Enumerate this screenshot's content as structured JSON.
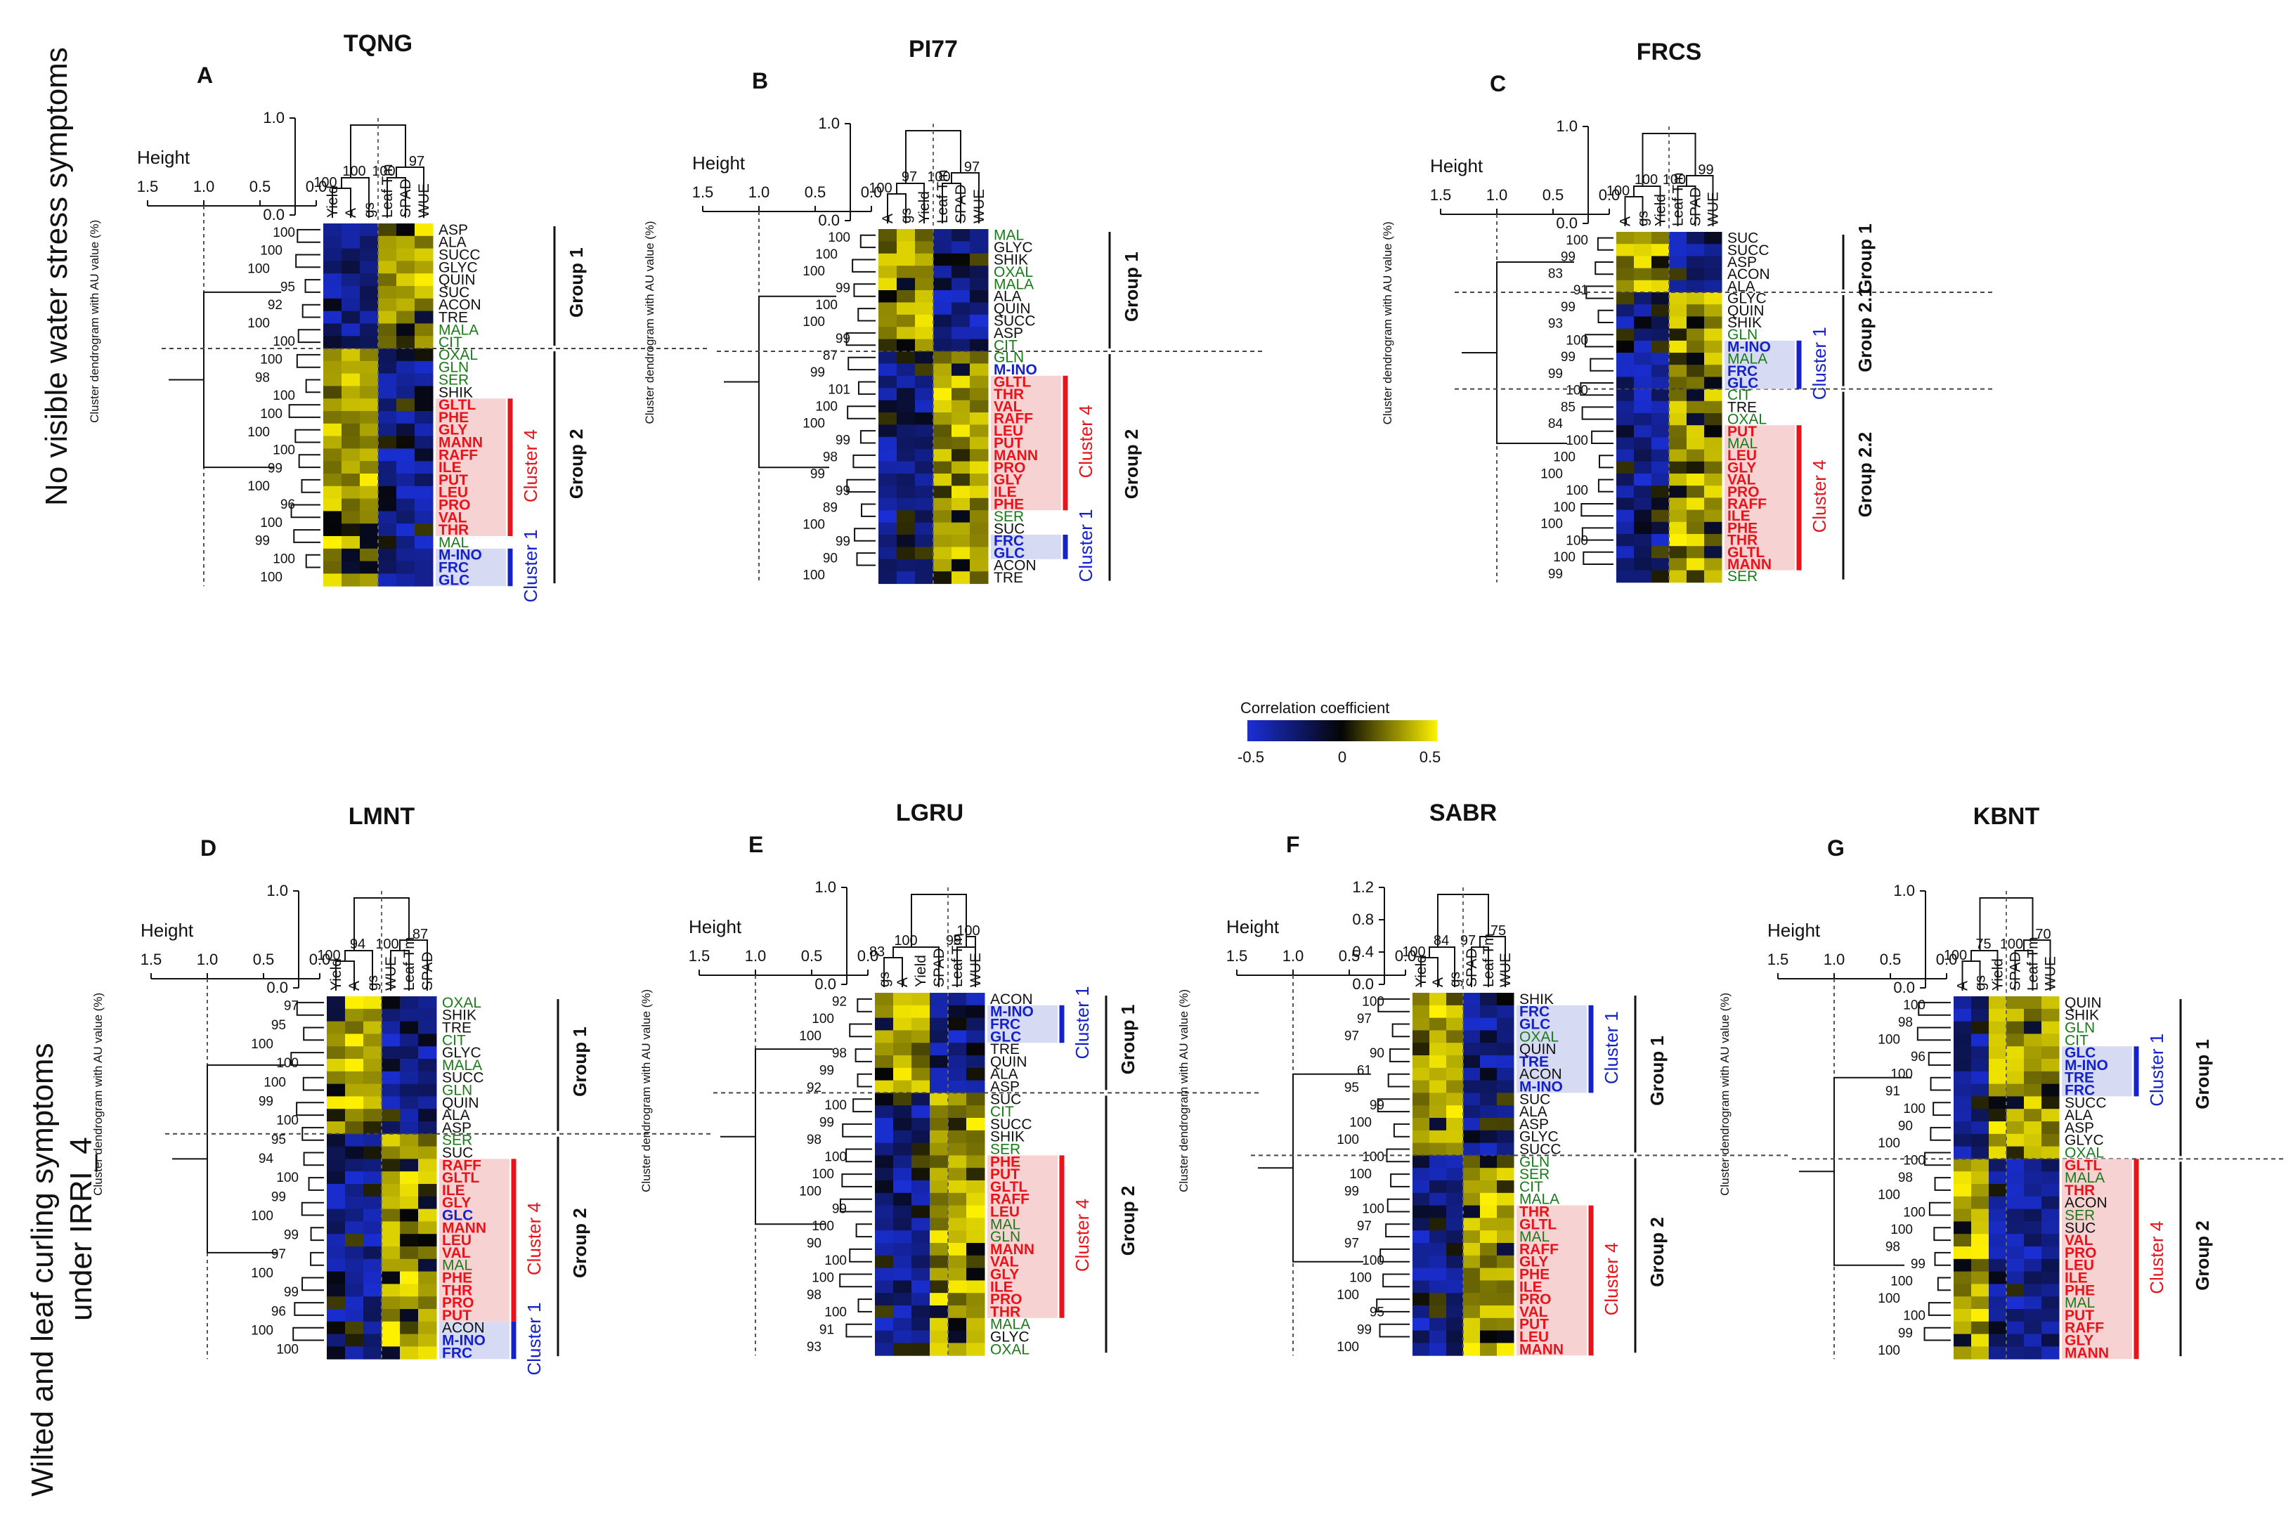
{
  "colors": {
    "neg": "#1a2fd6",
    "mid": "#050505",
    "pos": "#fff200",
    "red": "#e8141b",
    "blue": "#1522c8",
    "green": "#1a7a1a",
    "black": "#111111",
    "redbox": "#f7d2d2",
    "bluebox": "#d6daf2"
  },
  "row_labels": {
    "top": "No visible  water stress symptoms",
    "bottom_l1": "Wilted and leaf curling symptoms",
    "bottom_l2": "under IRRI_4"
  },
  "legend": {
    "title": "Correlation coefficient",
    "ticks": [
      "-0.5",
      "0",
      "0.5"
    ]
  },
  "common": {
    "height_label": "Height",
    "height_ticks": [
      "1.5",
      "1.0",
      "0.5",
      "0.0"
    ],
    "y_axis_label": "Cluster dendrogram with AU value (%)"
  },
  "panels": [
    {
      "letter": "A",
      "title": "TQNG",
      "cols": [
        "Yield",
        "A",
        "gs",
        "Leaf Tm",
        "SPAD",
        "WUE"
      ],
      "top_ticks": [
        "1.0",
        "0.0"
      ],
      "top_au": [
        "100",
        "100",
        "100",
        "97"
      ],
      "rows": [
        "ASP",
        "ALA",
        "SUCC",
        "GLYC",
        "QUIN",
        "SUC",
        "ACON",
        "TRE",
        "MALA",
        "CIT",
        "OXAL",
        "GLN",
        "SER",
        "SHIK",
        "GLTL",
        "PHE",
        "GLY",
        "MANN",
        "RAFF",
        "ILE",
        "PUT",
        "LEU",
        "PRO",
        "VAL",
        "THR",
        "MAL",
        "M-INO",
        "FRC",
        "GLC"
      ],
      "row_col": [
        "k",
        "k",
        "k",
        "k",
        "k",
        "k",
        "k",
        "k",
        "g",
        "g",
        "g",
        "g",
        "g",
        "k",
        "r",
        "r",
        "r",
        "r",
        "r",
        "r",
        "r",
        "r",
        "r",
        "r",
        "r",
        "g",
        "b",
        "b",
        "b"
      ],
      "au": [
        "100",
        "100",
        "100",
        "95",
        "92",
        "100",
        "100",
        "100",
        "98",
        "100",
        "100",
        "100",
        "100",
        "99",
        "100",
        "96",
        "100",
        "99",
        "100",
        "100"
      ],
      "groups": [
        {
          "label": "Group 1",
          "from": 0,
          "to": 9
        },
        {
          "label": "Group 2",
          "from": 10,
          "to": 28
        }
      ],
      "clusters": [
        {
          "label": "Cluster 4",
          "from": 14,
          "to": 24,
          "color": "r"
        },
        {
          "label": "Cluster 1",
          "from": 26,
          "to": 28,
          "color": "b"
        }
      ],
      "split": 10,
      "vsplit": 3,
      "dir": [
        -1,
        -1,
        -1,
        1,
        1,
        1
      ]
    },
    {
      "letter": "B",
      "title": "PI77",
      "cols": [
        "A",
        "gs",
        "Yield",
        "Leaf Tm",
        "SPAD",
        "WUE"
      ],
      "top_ticks": [
        "1.0",
        "0.0"
      ],
      "top_au": [
        "100",
        "97",
        "100",
        "97"
      ],
      "rows": [
        "MAL",
        "GLYC",
        "SHIK",
        "OXAL",
        "MALA",
        "ALA",
        "QUIN",
        "SUCC",
        "ASP",
        "CIT",
        "GLN",
        "M-INO",
        "GLTL",
        "THR",
        "VAL",
        "RAFF",
        "LEU",
        "PUT",
        "MANN",
        "PRO",
        "GLY",
        "ILE",
        "PHE",
        "SER",
        "SUC",
        "FRC",
        "GLC",
        "ACON",
        "TRE"
      ],
      "row_col": [
        "g",
        "k",
        "k",
        "g",
        "g",
        "k",
        "k",
        "k",
        "k",
        "g",
        "g",
        "b",
        "r",
        "r",
        "r",
        "r",
        "r",
        "r",
        "r",
        "r",
        "r",
        "r",
        "r",
        "g",
        "k",
        "b",
        "b",
        "k",
        "k"
      ],
      "au": [
        "100",
        "100",
        "100",
        "99",
        "100",
        "100",
        "99",
        "87",
        "99",
        "101",
        "100",
        "100",
        "99",
        "98",
        "99",
        "99",
        "89",
        "100",
        "99",
        "90",
        "100"
      ],
      "groups": [
        {
          "label": "Group 1",
          "from": 0,
          "to": 9
        },
        {
          "label": "Group 2",
          "from": 10,
          "to": 28
        }
      ],
      "clusters": [
        {
          "label": "Cluster 4",
          "from": 12,
          "to": 22,
          "color": "r"
        },
        {
          "label": "Cluster 1",
          "from": 25,
          "to": 26,
          "color": "b"
        }
      ],
      "split": 10,
      "vsplit": 3,
      "dir": [
        1,
        1,
        1,
        -1,
        -1,
        -1
      ]
    },
    {
      "letter": "C",
      "title": "FRCS",
      "cols": [
        "A",
        "gs",
        "Yield",
        "Leaf Tm",
        "SPAD",
        "WUE"
      ],
      "top_ticks": [
        "1.0",
        "0.0"
      ],
      "top_au": [
        "100",
        "100",
        "100",
        "99"
      ],
      "rows": [
        "SUC",
        "SUCC",
        "ASP",
        "ACON",
        "ALA",
        "GLYC",
        "QUIN",
        "SHIK",
        "GLN",
        "M-INO",
        "MALA",
        "FRC",
        "GLC",
        "CIT",
        "TRE",
        "OXAL",
        "PUT",
        "MAL",
        "LEU",
        "GLY",
        "VAL",
        "PRO",
        "RAFF",
        "ILE",
        "PHE",
        "THR",
        "GLTL",
        "MANN",
        "SER"
      ],
      "row_col": [
        "k",
        "k",
        "k",
        "k",
        "k",
        "k",
        "k",
        "k",
        "g",
        "b",
        "g",
        "b",
        "b",
        "g",
        "k",
        "g",
        "r",
        "g",
        "r",
        "r",
        "r",
        "r",
        "r",
        "r",
        "r",
        "r",
        "r",
        "r",
        "g"
      ],
      "au": [
        "100",
        "99",
        "83",
        "91",
        "99",
        "93",
        "100",
        "99",
        "99",
        "100",
        "85",
        "84",
        "100",
        "100",
        "100",
        "100",
        "100",
        "100",
        "100",
        "100",
        "99"
      ],
      "groups": [
        {
          "label": "Group 1",
          "from": 0,
          "to": 4
        },
        {
          "label": "Group 2.1",
          "from": 5,
          "to": 12
        },
        {
          "label": "Group 2.2",
          "from": 13,
          "to": 28
        }
      ],
      "clusters": [
        {
          "label": "Cluster 1",
          "from": 9,
          "to": 12,
          "color": "b"
        },
        {
          "label": "Cluster 4",
          "from": 16,
          "to": 27,
          "color": "r"
        }
      ],
      "split": 5,
      "split2": 13,
      "vsplit": 3,
      "dir": [
        1,
        1,
        1,
        -1,
        -1,
        -1
      ]
    },
    {
      "letter": "D",
      "title": "LMNT",
      "cols": [
        "Yield",
        "A",
        "gs",
        "WUE",
        "Leaf Tm",
        "SPAD"
      ],
      "top_ticks": [
        "1.0",
        "0.0"
      ],
      "top_au": [
        "100",
        "94",
        "100",
        "87"
      ],
      "rows": [
        "OXAL",
        "SHIK",
        "TRE",
        "CIT",
        "GLYC",
        "MALA",
        "SUCC",
        "GLN",
        "QUIN",
        "ALA",
        "ASP",
        "SER",
        "SUC",
        "RAFF",
        "GLTL",
        "ILE",
        "GLY",
        "GLC",
        "MANN",
        "LEU",
        "VAL",
        "MAL",
        "PHE",
        "THR",
        "PRO",
        "PUT",
        "ACON",
        "M-INO",
        "FRC"
      ],
      "row_col": [
        "g",
        "k",
        "k",
        "g",
        "k",
        "g",
        "k",
        "g",
        "k",
        "k",
        "k",
        "g",
        "k",
        "r",
        "r",
        "r",
        "r",
        "b",
        "r",
        "r",
        "r",
        "g",
        "r",
        "r",
        "r",
        "r",
        "k",
        "b",
        "b"
      ],
      "au": [
        "97",
        "95",
        "100",
        "100",
        "100",
        "99",
        "100",
        "95",
        "94",
        "100",
        "99",
        "100",
        "99",
        "97",
        "100",
        "99",
        "96",
        "100",
        "100"
      ],
      "groups": [
        {
          "label": "Group 1",
          "from": 0,
          "to": 10
        },
        {
          "label": "Group 2",
          "from": 11,
          "to": 28
        }
      ],
      "clusters": [
        {
          "label": "Cluster 4",
          "from": 13,
          "to": 25,
          "color": "r"
        },
        {
          "label": "Cluster 1",
          "from": 26,
          "to": 28,
          "color": "b"
        }
      ],
      "split": 11,
      "vsplit": 3,
      "dir": [
        1,
        1,
        1,
        -1,
        -1,
        -1
      ]
    },
    {
      "letter": "E",
      "title": "LGRU",
      "cols": [
        "gs",
        "A",
        "Yield",
        "SPAD",
        "Leaf Tm",
        "WUE"
      ],
      "top_ticks": [
        "1.0",
        "0.0"
      ],
      "top_au": [
        "83",
        "100",
        "99",
        "100"
      ],
      "rows": [
        "ACON",
        "M-INO",
        "FRC",
        "GLC",
        "TRE",
        "QUIN",
        "ALA",
        "ASP",
        "SUC",
        "CIT",
        "SUCC",
        "SHIK",
        "SER",
        "PHE",
        "PUT",
        "GLTL",
        "RAFF",
        "LEU",
        "MAL",
        "GLN",
        "MANN",
        "VAL",
        "GLY",
        "ILE",
        "PRO",
        "THR",
        "MALA",
        "GLYC",
        "OXAL"
      ],
      "row_col": [
        "k",
        "b",
        "b",
        "b",
        "k",
        "k",
        "k",
        "k",
        "k",
        "g",
        "k",
        "k",
        "g",
        "r",
        "r",
        "r",
        "r",
        "r",
        "g",
        "g",
        "r",
        "r",
        "r",
        "r",
        "r",
        "r",
        "g",
        "k",
        "g"
      ],
      "au": [
        "92",
        "100",
        "100",
        "98",
        "99",
        "92",
        "100",
        "99",
        "98",
        "100",
        "100",
        "100",
        "99",
        "100",
        "90",
        "100",
        "100",
        "98",
        "100",
        "91",
        "93"
      ],
      "groups": [
        {
          "label": "Group 1",
          "from": 0,
          "to": 7
        },
        {
          "label": "Group 2",
          "from": 8,
          "to": 28
        }
      ],
      "clusters": [
        {
          "label": "Cluster 1",
          "from": 1,
          "to": 3,
          "color": "b"
        },
        {
          "label": "Cluster 4",
          "from": 13,
          "to": 25,
          "color": "r"
        }
      ],
      "split": 8,
      "vsplit": 4,
      "dir": [
        1,
        1,
        1,
        -1,
        -1,
        -1
      ]
    },
    {
      "letter": "F",
      "title": "SABR",
      "cols": [
        "Yield",
        "A",
        "gs",
        "SPAD",
        "Leaf Tm",
        "WUE"
      ],
      "top_ticks": [
        "1.2",
        "0.8",
        "0.4",
        "0.0"
      ],
      "top_au": [
        "100",
        "84",
        "97",
        "75"
      ],
      "rows": [
        "SHIK",
        "FRC",
        "GLC",
        "OXAL",
        "QUIN",
        "TRE",
        "ACON",
        "M-INO",
        "SUC",
        "ALA",
        "ASP",
        "GLYC",
        "SUCC",
        "GLN",
        "SER",
        "CIT",
        "MALA",
        "THR",
        "GLTL",
        "MAL",
        "RAFF",
        "GLY",
        "PHE",
        "ILE",
        "PRO",
        "VAL",
        "PUT",
        "LEU",
        "MANN"
      ],
      "row_col": [
        "k",
        "b",
        "b",
        "g",
        "k",
        "b",
        "k",
        "b",
        "k",
        "k",
        "k",
        "k",
        "k",
        "g",
        "g",
        "g",
        "g",
        "r",
        "r",
        "g",
        "r",
        "r",
        "r",
        "r",
        "r",
        "r",
        "r",
        "r",
        "r"
      ],
      "au": [
        "100",
        "97",
        "97",
        "90",
        "61",
        "95",
        "99",
        "100",
        "100",
        "100",
        "100",
        "99",
        "100",
        "97",
        "97",
        "100",
        "100",
        "100",
        "95",
        "99",
        "100"
      ],
      "groups": [
        {
          "label": "Group 1",
          "from": 0,
          "to": 12
        },
        {
          "label": "Group 2",
          "from": 13,
          "to": 28
        }
      ],
      "clusters": [
        {
          "label": "Cluster 1",
          "from": 1,
          "to": 7,
          "color": "b"
        },
        {
          "label": "Cluster 4",
          "from": 17,
          "to": 28,
          "color": "r"
        }
      ],
      "split": 13,
      "vsplit": 3,
      "dir": [
        1,
        1,
        1,
        -1,
        -1,
        -1
      ]
    },
    {
      "letter": "G",
      "title": "KBNT",
      "cols": [
        "A",
        "gs",
        "Yield",
        "SPAD",
        "Leaf Tm",
        "WUE"
      ],
      "top_ticks": [
        "1.0",
        "0.0"
      ],
      "top_au": [
        "100",
        "75",
        "100",
        "70"
      ],
      "rows": [
        "QUIN",
        "SHIK",
        "GLN",
        "CIT",
        "GLC",
        "M-INO",
        "TRE",
        "FRC",
        "SUCC",
        "ALA",
        "ASP",
        "GLYC",
        "OXAL",
        "GLTL",
        "MALA",
        "THR",
        "ACON",
        "SER",
        "SUC",
        "VAL",
        "PRO",
        "LEU",
        "ILE",
        "PHE",
        "MAL",
        "PUT",
        "RAFF",
        "GLY",
        "MANN"
      ],
      "row_col": [
        "k",
        "k",
        "g",
        "g",
        "b",
        "b",
        "b",
        "b",
        "k",
        "k",
        "k",
        "k",
        "g",
        "r",
        "g",
        "r",
        "k",
        "g",
        "k",
        "r",
        "r",
        "r",
        "r",
        "r",
        "g",
        "r",
        "r",
        "r",
        "r"
      ],
      "au": [
        "100",
        "98",
        "100",
        "96",
        "100",
        "91",
        "100",
        "90",
        "100",
        "100",
        "98",
        "100",
        "100",
        "100",
        "98",
        "99",
        "100",
        "100",
        "100",
        "99",
        "100"
      ],
      "groups": [
        {
          "label": "Group 1",
          "from": 0,
          "to": 12
        },
        {
          "label": "Group 2",
          "from": 13,
          "to": 28
        }
      ],
      "clusters": [
        {
          "label": "Cluster 1",
          "from": 4,
          "to": 7,
          "color": "b"
        },
        {
          "label": "Cluster 4",
          "from": 13,
          "to": 28,
          "color": "r"
        }
      ],
      "split": 13,
      "vsplit": 3,
      "dir": [
        -1,
        -1,
        1,
        1,
        1,
        1
      ]
    }
  ]
}
